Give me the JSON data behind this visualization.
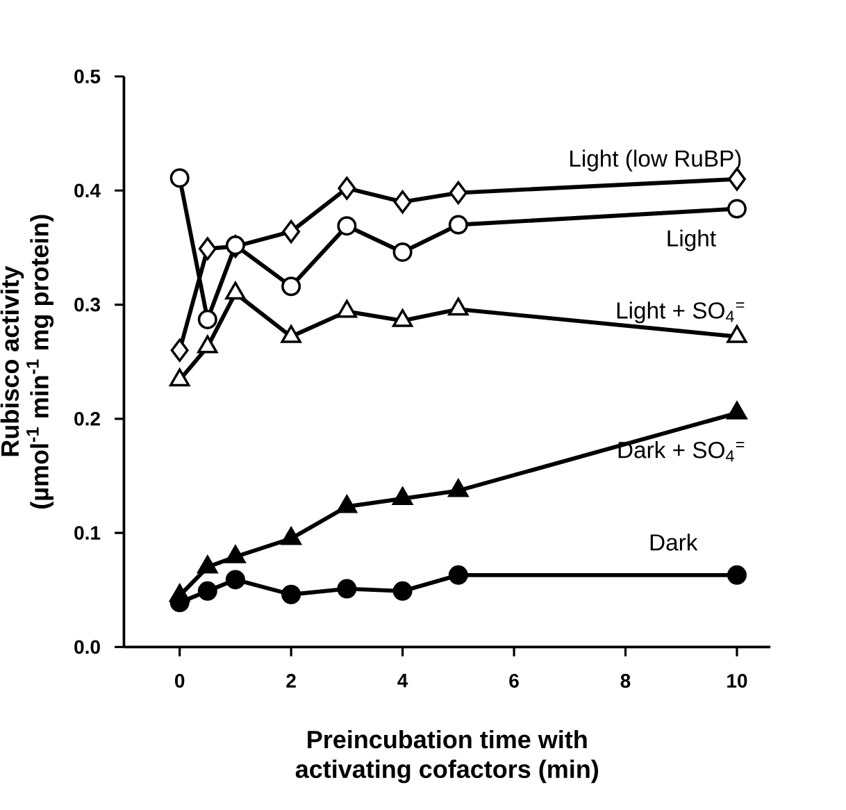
{
  "chart_data": {
    "type": "line",
    "xlabel": [
      "Preincubation time with",
      "activating cofactors (min)"
    ],
    "ylabel": [
      "Rubisco activity",
      "(µmol$^{-1}$ min$^{-1}$ mg protein)"
    ],
    "xlim": [
      -1,
      10.6
    ],
    "ylim": [
      0,
      0.5
    ],
    "xticks": [
      0,
      2,
      4,
      6,
      8,
      10
    ],
    "yticks": [
      {
        "value": 0,
        "label": "0.0"
      },
      {
        "value": 0.1,
        "label": "0.1"
      },
      {
        "value": 0.2,
        "label": "0.2"
      },
      {
        "value": 0.3,
        "label": "0.3"
      },
      {
        "value": 0.4,
        "label": "0.4"
      },
      {
        "value": 0.5,
        "label": "0.5"
      }
    ],
    "grid": false,
    "legend": false,
    "line_style": "solid",
    "x": [
      0,
      0.5,
      1,
      2,
      3,
      4,
      5,
      10
    ],
    "series": [
      {
        "name": "Light (low RuBP)",
        "color": "#000000",
        "marker": "diamond",
        "colors": [
          "#ffffff",
          "#ffffff",
          "#ffffff",
          "#ffffff",
          "#ffffff",
          "#ffffff",
          "#ffffff",
          "#ffffff"
        ],
        "values": [
          0.26,
          0.349,
          0.351,
          0.364,
          0.402,
          0.39,
          0.398,
          0.41
        ]
      },
      {
        "name": "Light",
        "color": "#000000",
        "marker": "circle",
        "colors": [
          "#ffffff",
          "#ffffff",
          "#ffffff",
          "#ffffff",
          "#ffffff",
          "#ffffff",
          "#ffffff",
          "#ffffff"
        ],
        "values": [
          0.411,
          0.287,
          0.352,
          0.316,
          0.369,
          0.346,
          0.37,
          0.384
        ]
      },
      {
        "name": "Light + SO$_{4}$$^{=}$",
        "color": "#000000",
        "marker": "triangle",
        "colors": [
          "#ffffff",
          "#ffffff",
          "#ffffff",
          "#ffffff",
          "#ffffff",
          "#ffffff",
          "#ffffff",
          "#ffffff"
        ],
        "values": [
          0.234,
          0.263,
          0.31,
          0.272,
          0.294,
          0.286,
          0.296,
          0.272
        ]
      },
      {
        "name": "Dark + SO$_{4}$$^{=}$",
        "color": "#000000",
        "marker": "triangle",
        "values": [
          0.045,
          0.07,
          0.079,
          0.095,
          0.123,
          0.13,
          0.137,
          0.205
        ]
      },
      {
        "name": "Dark",
        "color": "#000000",
        "marker": "circle",
        "values": [
          0.039,
          0.049,
          0.059,
          0.046,
          0.051,
          0.049,
          0.063,
          0.063
        ]
      }
    ]
  }
}
